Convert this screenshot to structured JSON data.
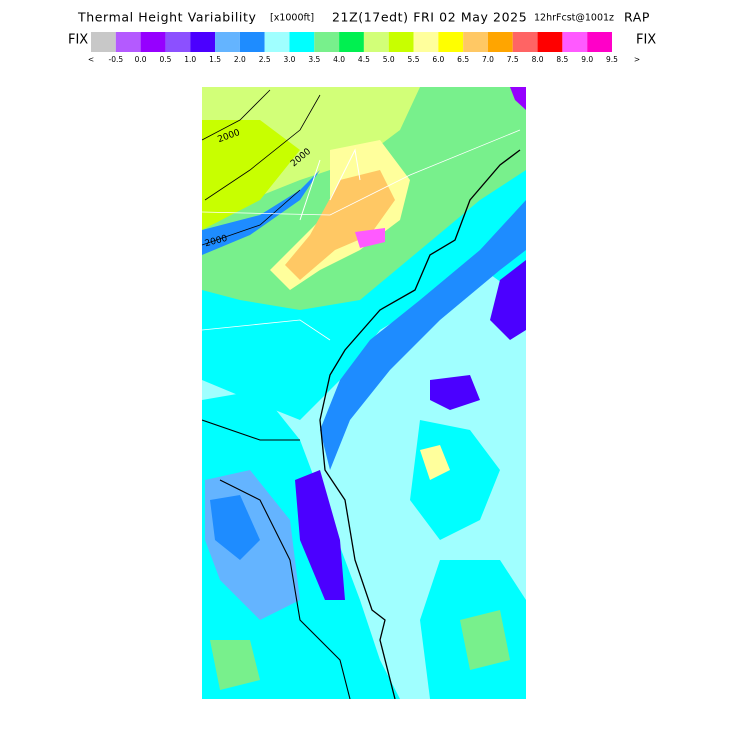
{
  "header": {
    "title": "Thermal Height Variability",
    "units": "[x1000ft]",
    "valid_time": "21Z(17edt) FRI 02 May 2025",
    "forecast": "12hrFcst@1001z",
    "model": "RAP"
  },
  "legend": {
    "left_label": "FIX",
    "right_label": "FIX",
    "low_arrow": "<",
    "high_arrow": ">",
    "items": [
      {
        "label": "-0.5",
        "color": "#c8c8c8"
      },
      {
        "label": "0.0",
        "color": "#b45aff"
      },
      {
        "label": "0.5",
        "color": "#9600ff"
      },
      {
        "label": "1.0",
        "color": "#8c50ff"
      },
      {
        "label": "1.5",
        "color": "#4b00ff"
      },
      {
        "label": "2.0",
        "color": "#64b4ff"
      },
      {
        "label": "2.5",
        "color": "#1e8cff"
      },
      {
        "label": "3.0",
        "color": "#a0ffff"
      },
      {
        "label": "3.5",
        "color": "#00ffff"
      },
      {
        "label": "4.0",
        "color": "#78f08c"
      },
      {
        "label": "4.5",
        "color": "#00f050"
      },
      {
        "label": "5.0",
        "color": "#d2ff78"
      },
      {
        "label": "5.5",
        "color": "#c8ff00"
      },
      {
        "label": "6.0",
        "color": "#ffff9c"
      },
      {
        "label": "6.5",
        "color": "#ffff00"
      },
      {
        "label": "7.0",
        "color": "#ffc864"
      },
      {
        "label": "7.5",
        "color": "#ffa500"
      },
      {
        "label": "8.0",
        "color": "#ff6464"
      },
      {
        "label": "8.5",
        "color": "#ff0000"
      },
      {
        "label": "9.0",
        "color": "#ff5aff"
      },
      {
        "label": "9.5",
        "color": "#ff00c8"
      }
    ]
  },
  "map": {
    "contour_labels": [
      "2000",
      "2000",
      "2000"
    ]
  }
}
